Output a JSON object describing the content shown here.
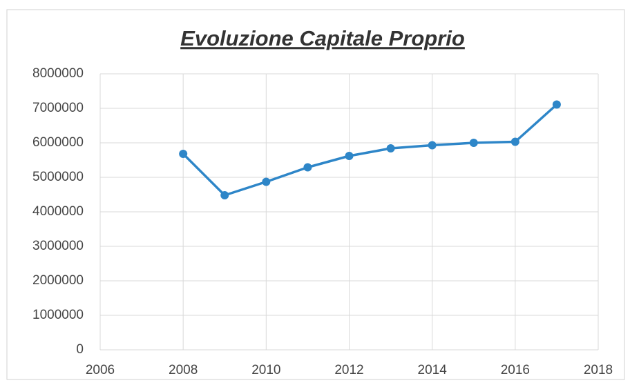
{
  "chart_data": {
    "type": "line",
    "title": "Evoluzione Capitale Proprio",
    "x": [
      2008,
      2009,
      2010,
      2011,
      2012,
      2013,
      2014,
      2015,
      2016,
      2017
    ],
    "series": [
      {
        "name": "Capitale Proprio",
        "color": "#2e86c8",
        "values": [
          5680000,
          4480000,
          4870000,
          5290000,
          5620000,
          5840000,
          5930000,
          6000000,
          6030000,
          7110000
        ]
      }
    ],
    "xlim": [
      2006,
      2018
    ],
    "xticks": [
      2006,
      2008,
      2010,
      2012,
      2014,
      2016,
      2018
    ],
    "ylim": [
      0,
      8000000
    ],
    "yticks": [
      0,
      1000000,
      2000000,
      3000000,
      4000000,
      5000000,
      6000000,
      7000000,
      8000000
    ],
    "grid": true,
    "markers": true
  }
}
